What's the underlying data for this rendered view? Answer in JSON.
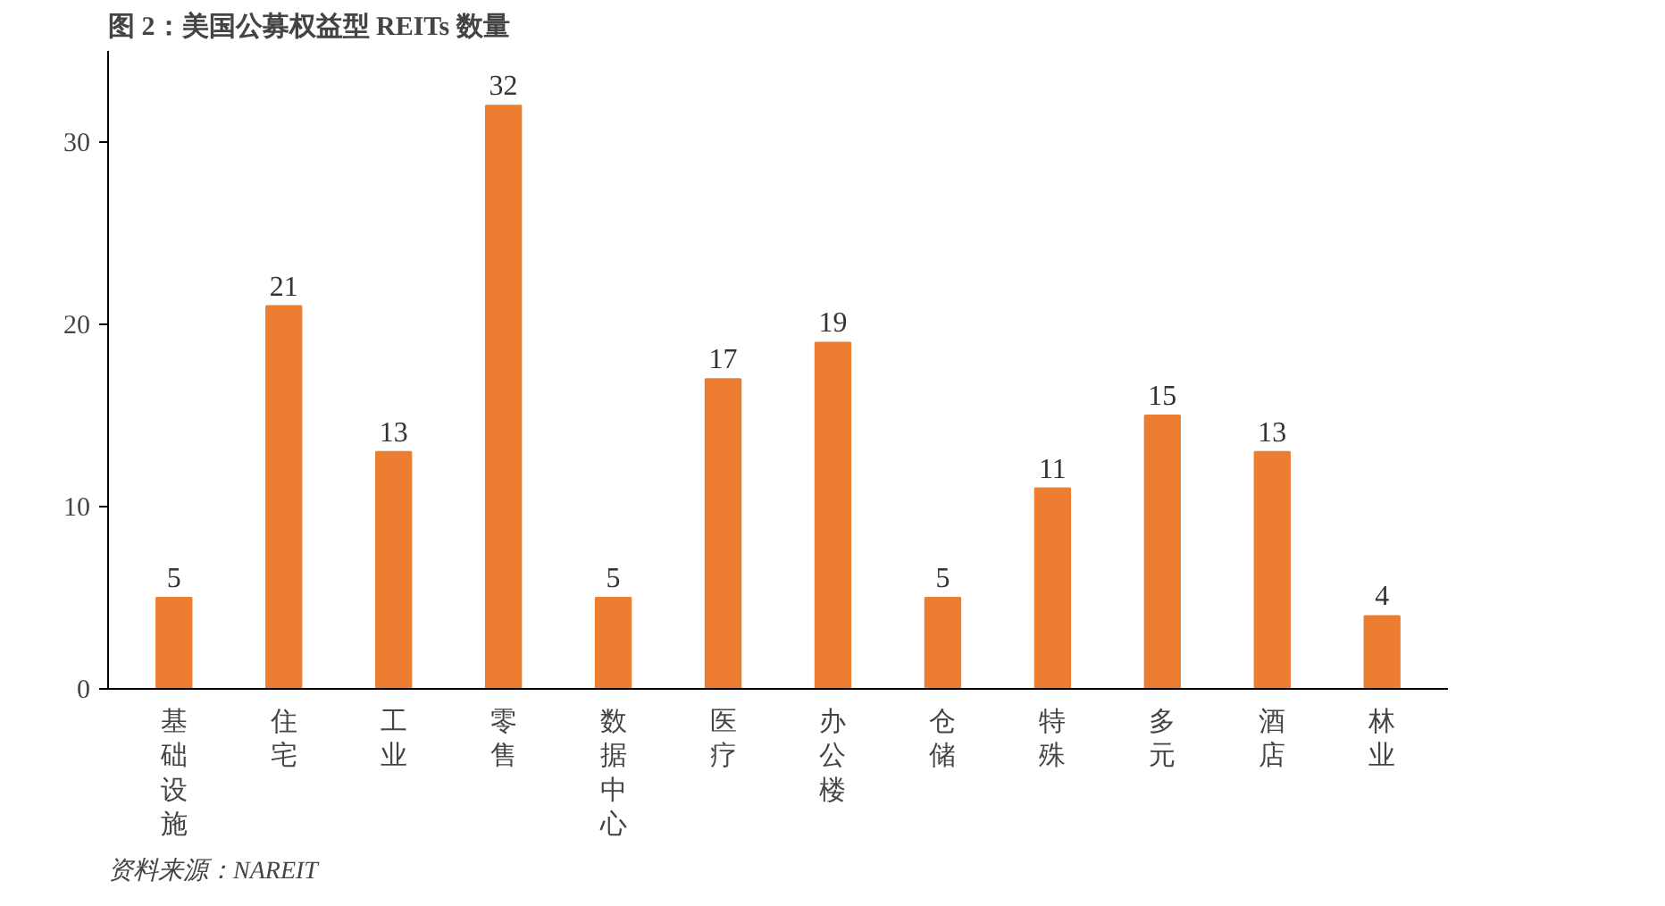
{
  "chart_data": {
    "type": "bar",
    "title": "图 2：美国公募权益型 REITs 数量",
    "categories": [
      "基础设施",
      "住宅",
      "工业",
      "零售",
      "数据中心",
      "医疗",
      "办公楼",
      "仓储",
      "特殊",
      "多元",
      "酒店",
      "林业"
    ],
    "values": [
      5,
      21,
      13,
      32,
      5,
      17,
      19,
      5,
      11,
      15,
      13,
      4
    ],
    "color": "#ed7d31",
    "ylim": [
      0,
      35
    ],
    "yticks": [
      0,
      10,
      20,
      30
    ],
    "grid": false,
    "data_labels": true,
    "annotations": [
      "资料来源：NAREIT"
    ]
  }
}
